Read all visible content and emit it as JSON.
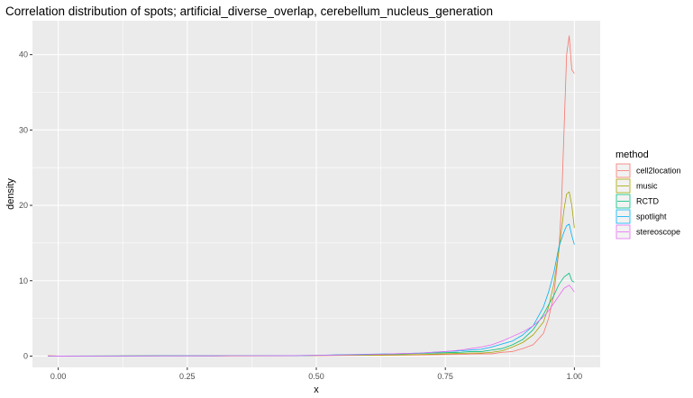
{
  "chart_data": {
    "type": "line",
    "title": "Correlation distribution of spots; artificial_diverse_overlap, cerebellum_nucleus_generation",
    "xlabel": "x",
    "ylabel": "density",
    "xlim": [
      -0.05,
      1.05
    ],
    "ylim": [
      -1.5,
      44.5
    ],
    "x_ticks": [
      0.0,
      0.25,
      0.5,
      0.75,
      1.0
    ],
    "x_tick_labels": [
      "0.00",
      "0.25",
      "0.50",
      "0.75",
      "1.00"
    ],
    "y_ticks": [
      0,
      10,
      20,
      30,
      40
    ],
    "y_tick_labels": [
      "0",
      "10",
      "20",
      "30",
      "40"
    ],
    "grid": true,
    "legend_title": "method",
    "legend_position": "right",
    "series": [
      {
        "name": "cell2location",
        "color": "#F8766D",
        "x": [
          -0.02,
          0.0,
          0.2,
          0.3,
          0.45,
          0.5,
          0.55,
          0.6,
          0.65,
          0.7,
          0.75,
          0.78,
          0.8,
          0.82,
          0.84,
          0.86,
          0.88,
          0.9,
          0.92,
          0.94,
          0.95,
          0.96,
          0.97,
          0.975,
          0.98,
          0.985,
          0.99,
          0.995,
          1.0
        ],
        "y": [
          0.05,
          0.0,
          0.02,
          0.03,
          0.03,
          0.05,
          0.08,
          0.1,
          0.12,
          0.15,
          0.2,
          0.22,
          0.28,
          0.3,
          0.3,
          0.5,
          0.6,
          1.0,
          1.5,
          3.0,
          5.0,
          8.0,
          14.0,
          20.0,
          30.0,
          40.0,
          42.5,
          38.0,
          37.5
        ]
      },
      {
        "name": "music",
        "color": "#A3A500",
        "x": [
          -0.02,
          0.0,
          0.2,
          0.3,
          0.45,
          0.5,
          0.55,
          0.6,
          0.65,
          0.7,
          0.75,
          0.78,
          0.8,
          0.82,
          0.84,
          0.86,
          0.88,
          0.9,
          0.92,
          0.94,
          0.95,
          0.96,
          0.97,
          0.98,
          0.985,
          0.99,
          0.995,
          1.0
        ],
        "y": [
          0.02,
          0.0,
          0.05,
          0.03,
          0.04,
          0.08,
          0.1,
          0.12,
          0.15,
          0.2,
          0.3,
          0.35,
          0.4,
          0.4,
          0.5,
          0.7,
          1.2,
          1.8,
          2.8,
          4.5,
          6.5,
          9.5,
          14.0,
          19.5,
          21.5,
          21.8,
          20.0,
          17.0
        ]
      },
      {
        "name": "RCTD",
        "color": "#00BF7D",
        "x": [
          -0.02,
          0.0,
          0.2,
          0.3,
          0.45,
          0.5,
          0.55,
          0.6,
          0.65,
          0.7,
          0.75,
          0.78,
          0.8,
          0.82,
          0.84,
          0.86,
          0.88,
          0.9,
          0.92,
          0.94,
          0.95,
          0.96,
          0.97,
          0.98,
          0.99,
          0.995,
          1.0
        ],
        "y": [
          0.01,
          0.0,
          0.02,
          0.03,
          0.05,
          0.1,
          0.15,
          0.2,
          0.25,
          0.35,
          0.45,
          0.5,
          0.6,
          0.6,
          0.8,
          1.0,
          1.5,
          2.2,
          3.5,
          5.5,
          6.8,
          8.0,
          9.5,
          10.5,
          11.0,
          10.0,
          9.8
        ]
      },
      {
        "name": "spotlight",
        "color": "#00B0F6",
        "x": [
          -0.02,
          0.0,
          0.2,
          0.3,
          0.45,
          0.5,
          0.55,
          0.6,
          0.65,
          0.7,
          0.75,
          0.78,
          0.8,
          0.82,
          0.84,
          0.86,
          0.88,
          0.9,
          0.92,
          0.94,
          0.95,
          0.96,
          0.97,
          0.98,
          0.985,
          0.99,
          0.995,
          1.0
        ],
        "y": [
          0.01,
          0.0,
          0.03,
          0.03,
          0.06,
          0.1,
          0.18,
          0.25,
          0.3,
          0.4,
          0.6,
          0.7,
          0.8,
          0.9,
          1.2,
          1.6,
          2.0,
          2.8,
          4.0,
          6.5,
          8.5,
          11.0,
          14.5,
          16.5,
          17.3,
          17.5,
          16.0,
          14.8
        ]
      },
      {
        "name": "stereoscope",
        "color": "#E76BF3",
        "x": [
          -0.02,
          0.0,
          0.2,
          0.3,
          0.45,
          0.5,
          0.55,
          0.6,
          0.65,
          0.7,
          0.75,
          0.78,
          0.8,
          0.82,
          0.84,
          0.86,
          0.88,
          0.9,
          0.92,
          0.94,
          0.95,
          0.96,
          0.97,
          0.98,
          0.99,
          0.995,
          1.0
        ],
        "y": [
          0.01,
          0.0,
          0.02,
          0.03,
          0.05,
          0.1,
          0.15,
          0.2,
          0.3,
          0.4,
          0.6,
          0.8,
          1.0,
          1.2,
          1.5,
          2.0,
          2.6,
          3.2,
          4.0,
          5.2,
          6.0,
          7.0,
          8.0,
          9.0,
          9.4,
          9.0,
          8.5
        ]
      }
    ]
  }
}
